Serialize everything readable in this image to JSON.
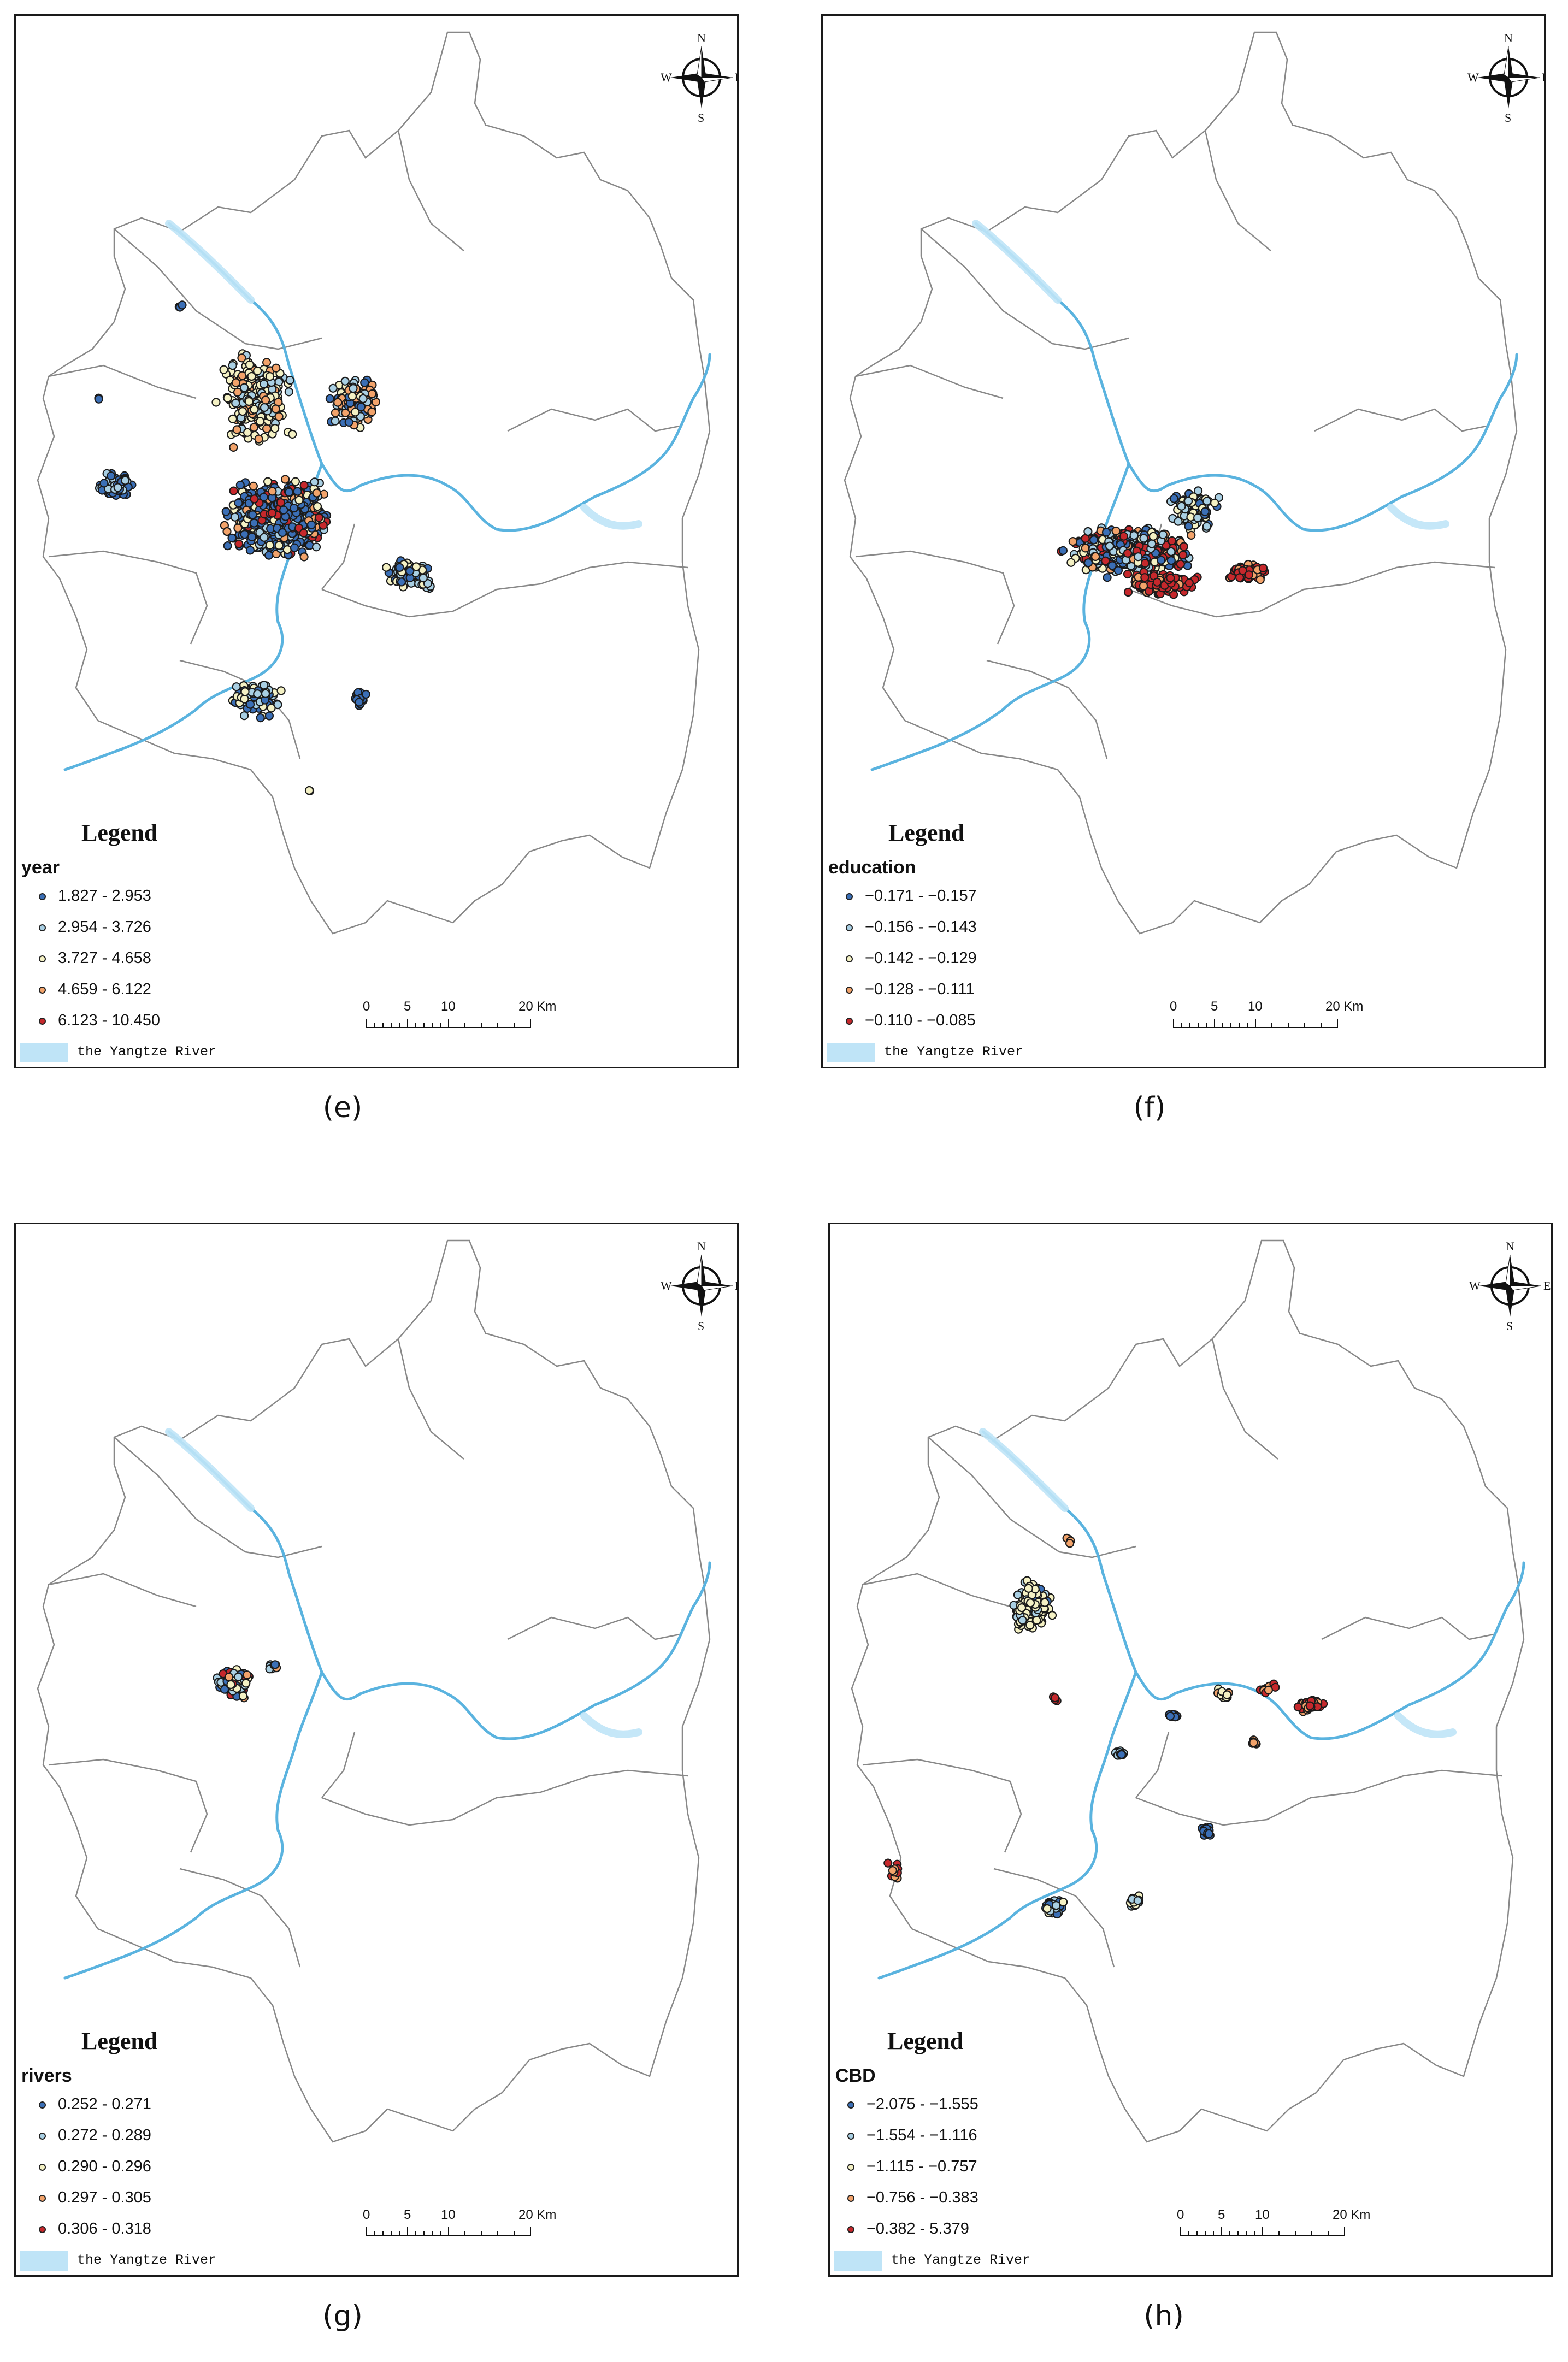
{
  "panels": [
    {
      "caption": "(e)",
      "legend_title": "Legend",
      "field": "year",
      "classes": [
        "1.827 - 2.953",
        "2.954 - 3.726",
        "3.727 - 4.658",
        "4.659 - 6.122",
        "6.123 - 10.450"
      ],
      "river_label": "the Yangtze River",
      "scale_labels": [
        "0",
        "5",
        "10",
        "20 Km"
      ],
      "compass": {
        "n": "N",
        "s": "S",
        "e": "E",
        "w": "W"
      }
    },
    {
      "caption": "(f)",
      "legend_title": "Legend",
      "field": "education",
      "classes": [
        "−0.171 - −0.157",
        "−0.156 - −0.143",
        "−0.142 - −0.129",
        "−0.128 - −0.111",
        "−0.110 - −0.085"
      ],
      "river_label": "the Yangtze River",
      "scale_labels": [
        "0",
        "5",
        "10",
        "20 Km"
      ],
      "compass": {
        "n": "N",
        "s": "S",
        "e": "E",
        "w": "W"
      }
    },
    {
      "caption": "(g)",
      "legend_title": "Legend",
      "field": "rivers",
      "classes": [
        "0.252 - 0.271",
        "0.272 - 0.289",
        "0.290 - 0.296",
        "0.297 - 0.305",
        "0.306 - 0.318"
      ],
      "river_label": "the Yangtze River",
      "scale_labels": [
        "0",
        "5",
        "10",
        "20 Km"
      ],
      "compass": {
        "n": "N",
        "s": "S",
        "e": "E",
        "w": "W"
      }
    },
    {
      "caption": "(h)",
      "legend_title": "Legend",
      "field": "CBD",
      "classes": [
        "−2.075 - −1.555",
        "−1.554 - −1.116",
        "−1.115 - −0.757",
        "−0.756 - −0.383",
        "−0.382 - 5.379"
      ],
      "river_label": "the Yangtze River",
      "scale_labels": [
        "0",
        "5",
        "10",
        "20 Km"
      ],
      "compass": {
        "n": "N",
        "s": "S",
        "e": "E",
        "w": "W"
      }
    }
  ],
  "class_colors": [
    "#3b6fb6",
    "#a9cfe3",
    "#f4f1c4",
    "#f2a36b",
    "#c6282c"
  ],
  "river_color": "#bfe4f7"
}
